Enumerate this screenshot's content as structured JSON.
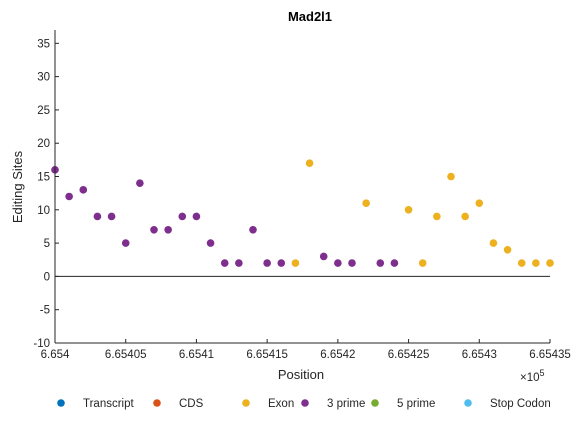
{
  "chart_data": {
    "type": "scatter",
    "title": "Mad2l1",
    "xlabel": "Position",
    "ylabel": "Editing Sites",
    "x_exponent_label": "×10",
    "x_exponent_power": "5",
    "xlim": [
      665400,
      665435
    ],
    "ylim": [
      -10,
      37
    ],
    "x_ticks": [
      665400,
      665405,
      665410,
      665415,
      665420,
      665425,
      665430,
      665435
    ],
    "x_tick_labels": [
      "6.654",
      "6.65405",
      "6.6541",
      "6.65415",
      "6.6542",
      "6.65425",
      "6.6543",
      "6.65435"
    ],
    "y_ticks": [
      -10,
      -5,
      0,
      5,
      10,
      15,
      20,
      25,
      30,
      35
    ],
    "y_tick_labels": [
      "-10",
      "-5",
      "0",
      "5",
      "10",
      "15",
      "20",
      "25",
      "30",
      "35"
    ],
    "zero_line": 0,
    "legend_position": "bottom",
    "series": [
      {
        "name": "Transcript",
        "color": "#0072BD",
        "points": []
      },
      {
        "name": "CDS",
        "color": "#D95319",
        "points": []
      },
      {
        "name": "Exon",
        "color": "#EDB120",
        "points": [
          [
            665417,
            2
          ],
          [
            665418,
            17
          ],
          [
            665422,
            11
          ],
          [
            665425,
            10
          ],
          [
            665426,
            2
          ],
          [
            665427,
            9
          ],
          [
            665428,
            15
          ],
          [
            665429,
            9
          ],
          [
            665430,
            11
          ],
          [
            665431,
            5
          ],
          [
            665432,
            4
          ],
          [
            665433,
            2
          ],
          [
            665434,
            2
          ],
          [
            665435,
            2
          ]
        ]
      },
      {
        "name": "3 prime",
        "color": "#7E2F8E",
        "points": [
          [
            665400,
            16
          ],
          [
            665401,
            12
          ],
          [
            665402,
            13
          ],
          [
            665403,
            9
          ],
          [
            665404,
            9
          ],
          [
            665405,
            5
          ],
          [
            665406,
            14
          ],
          [
            665407,
            7
          ],
          [
            665408,
            7
          ],
          [
            665409,
            9
          ],
          [
            665410,
            9
          ],
          [
            665411,
            5
          ],
          [
            665412,
            2
          ],
          [
            665413,
            2
          ],
          [
            665414,
            7
          ],
          [
            665415,
            2
          ],
          [
            665416,
            2
          ],
          [
            665419,
            3
          ],
          [
            665420,
            2
          ],
          [
            665421,
            2
          ],
          [
            665423,
            2
          ],
          [
            665424,
            2
          ]
        ]
      },
      {
        "name": "5 prime",
        "color": "#77AC30",
        "points": []
      },
      {
        "name": "Stop Codon",
        "color": "#4DBEEE",
        "points": []
      }
    ]
  }
}
